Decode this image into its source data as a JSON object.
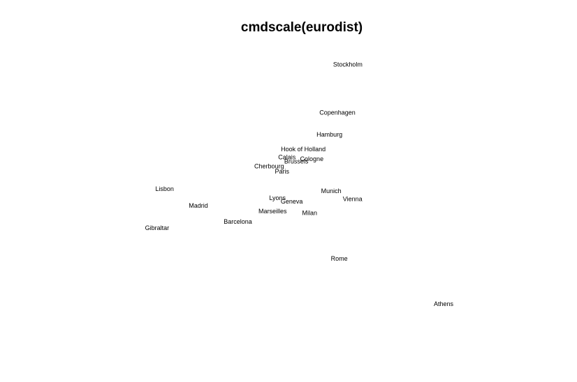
{
  "chart_data": {
    "type": "scatter",
    "title": "cmdscale(eurodist)",
    "labels": [
      "Athens",
      "Barcelona",
      "Brussels",
      "Calais",
      "Cherbourg",
      "Cologne",
      "Copenhagen",
      "Geneva",
      "Gibraltar",
      "Hamburg",
      "Hook of Holland",
      "Lisbon",
      "Lyons",
      "Madrid",
      "Marseilles",
      "Milan",
      "Munich",
      "Paris",
      "Rome",
      "Stockholm",
      "Vienna"
    ],
    "x": [
      2290.27,
      -825.38,
      59.18,
      -82.85,
      -352.5,
      293.69,
      681.93,
      -9.42,
      -2048.45,
      561.11,
      164.92,
      -1935.04,
      -226.42,
      -1423.35,
      -299.5,
      260.88,
      587.68,
      -156.84,
      709.41,
      839.45,
      911.23
    ],
    "y": [
      -1798.8,
      -546.81,
      367.08,
      429.91,
      290.91,
      405.31,
      1108.64,
      -240.41,
      -642.46,
      773.37,
      549.37,
      -49.12,
      -187.09,
      -305.88,
      -388.81,
      -416.67,
      -81.18,
      211.14,
      -1109.36,
      1836.79,
      -205.93
    ],
    "xlim": [
      -3370,
      3612
    ],
    "ylim": [
      -2256,
      2188
    ],
    "color": "#000000"
  }
}
